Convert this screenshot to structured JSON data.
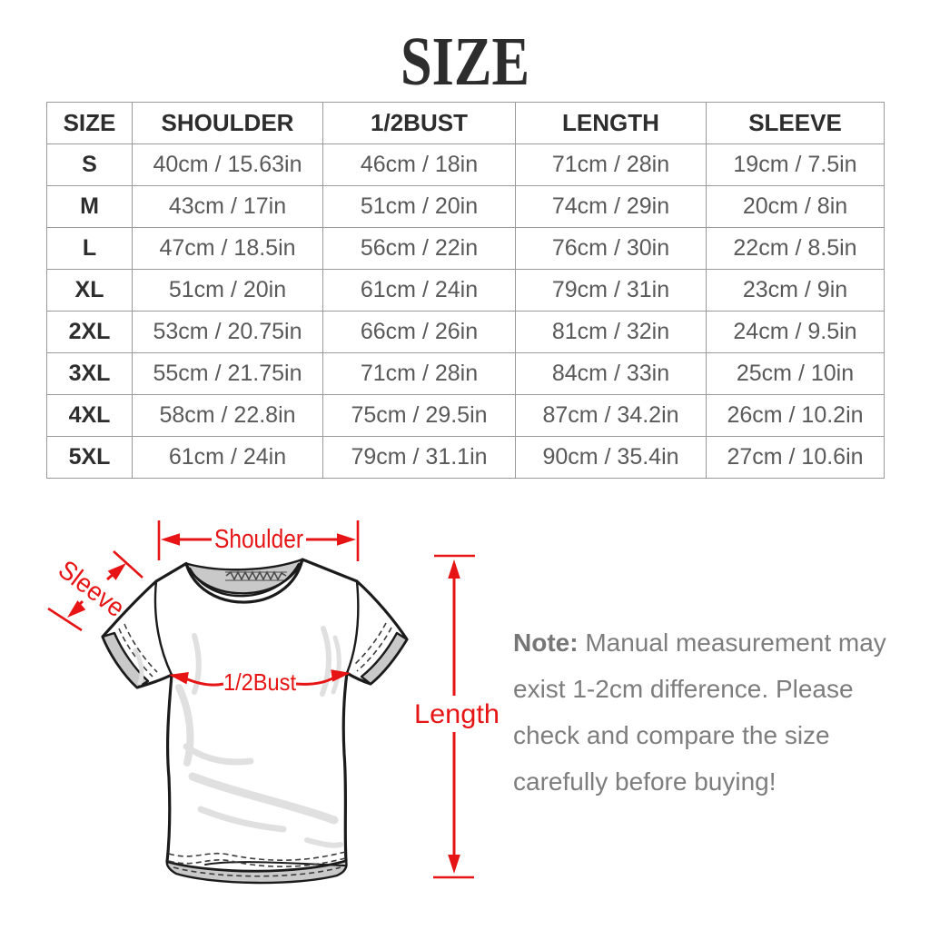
{
  "title": "SIZE",
  "table": {
    "columns": [
      "SIZE",
      "SHOULDER",
      "1/2BUST",
      "LENGTH",
      "SLEEVE"
    ],
    "rows": [
      {
        "size": "S",
        "cells": [
          "40cm / 15.63in",
          "46cm / 18in",
          "71cm / 28in",
          "19cm / 7.5in"
        ]
      },
      {
        "size": "M",
        "cells": [
          "43cm / 17in",
          "51cm / 20in",
          "74cm / 29in",
          "20cm / 8in"
        ]
      },
      {
        "size": "L",
        "cells": [
          "47cm / 18.5in",
          "56cm / 22in",
          "76cm / 30in",
          "22cm / 8.5in"
        ]
      },
      {
        "size": "XL",
        "cells": [
          "51cm / 20in",
          "61cm / 24in",
          "79cm / 31in",
          "23cm / 9in"
        ]
      },
      {
        "size": "2XL",
        "cells": [
          "53cm / 20.75in",
          "66cm / 26in",
          "81cm / 32in",
          "24cm / 9.5in"
        ]
      },
      {
        "size": "3XL",
        "cells": [
          "55cm / 21.75in",
          "71cm / 28in",
          "84cm / 33in",
          "25cm / 10in"
        ]
      },
      {
        "size": "4XL",
        "cells": [
          "58cm / 22.8in",
          "75cm / 29.5in",
          "87cm / 34.2in",
          "26cm / 10.2in"
        ]
      },
      {
        "size": "5XL",
        "cells": [
          "61cm / 24in",
          "79cm / 31.1in",
          "90cm / 35.4in",
          "27cm / 10.6in"
        ]
      }
    ]
  },
  "diagram": {
    "labels": {
      "shoulder": "Shoulder",
      "sleeve": "Sleeve",
      "bust": "1/2Bust",
      "length": "Length"
    }
  },
  "note": {
    "label": "Note:",
    "lines": [
      "Manual measurement may",
      "exist 1-2cm difference. Please",
      "check and compare the size",
      "carefully before buying!"
    ]
  },
  "colors": {
    "accent_red": "#e61414",
    "table_border": "#9a9a9a",
    "header_text": "#2d2d2d",
    "cell_text": "#595959",
    "note_text": "#7d7d7d",
    "shade_gray": "#c9c9c9"
  }
}
